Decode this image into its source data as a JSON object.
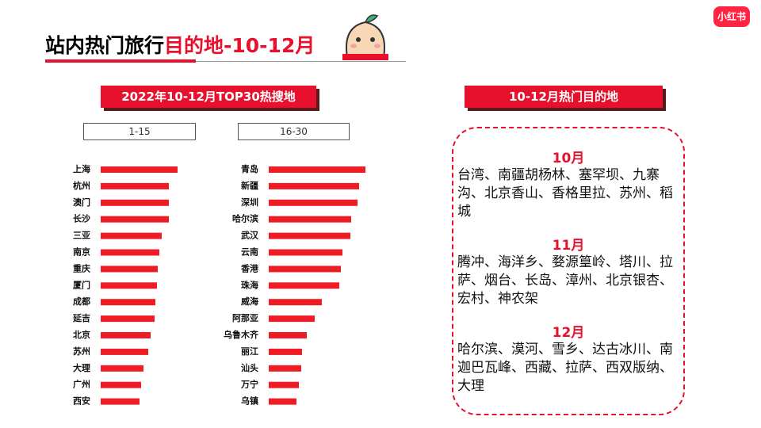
{
  "header": {
    "title_plain": "站内热门旅行",
    "title_accent": "目的地-10-12月",
    "logo": "小红书"
  },
  "left_banner": "2022年10-12月TOP30热搜地",
  "right_panel": {
    "banner": "10-12月热门目的地",
    "months": [
      {
        "month": "10月",
        "text": "台湾、南疆胡杨林、塞罕坝、九寨沟、北京香山、香格里拉、苏州、稻城"
      },
      {
        "month": "11月",
        "text": "腾冲、海洋乡、婺源篁岭、塔川、拉萨、烟台、长岛、漳州、北京银杏、宏村、神农架"
      },
      {
        "month": "12月",
        "text": "哈尔滨、漠河、雪乡、达古冰川、南迦巴瓦峰、西藏、拉萨、西双版纳、大理"
      }
    ]
  },
  "chart_data": [
    {
      "type": "bar",
      "orientation": "horizontal",
      "title": "1-15",
      "color": "#ee1c25",
      "categories": [
        "上海",
        "杭州",
        "澳门",
        "长沙",
        "三亚",
        "南京",
        "重庆",
        "厦门",
        "成都",
        "延吉",
        "北京",
        "苏州",
        "大理",
        "广州",
        "西安"
      ],
      "values": [
        97,
        86,
        86,
        86,
        77,
        74,
        72,
        71,
        69,
        68,
        63,
        60,
        54,
        51,
        49
      ]
    },
    {
      "type": "bar",
      "orientation": "horizontal",
      "title": "16-30",
      "color": "#ee1c25",
      "categories": [
        "青岛",
        "新疆",
        "深圳",
        "哈尔滨",
        "武汉",
        "云南",
        "香港",
        "珠海",
        "威海",
        "阿那亚",
        "乌鲁木齐",
        "丽江",
        "汕头",
        "万宁",
        "乌镇"
      ],
      "values": [
        122,
        114,
        112,
        104,
        103,
        93,
        91,
        89,
        67,
        58,
        48,
        42,
        41,
        38,
        35
      ]
    }
  ]
}
